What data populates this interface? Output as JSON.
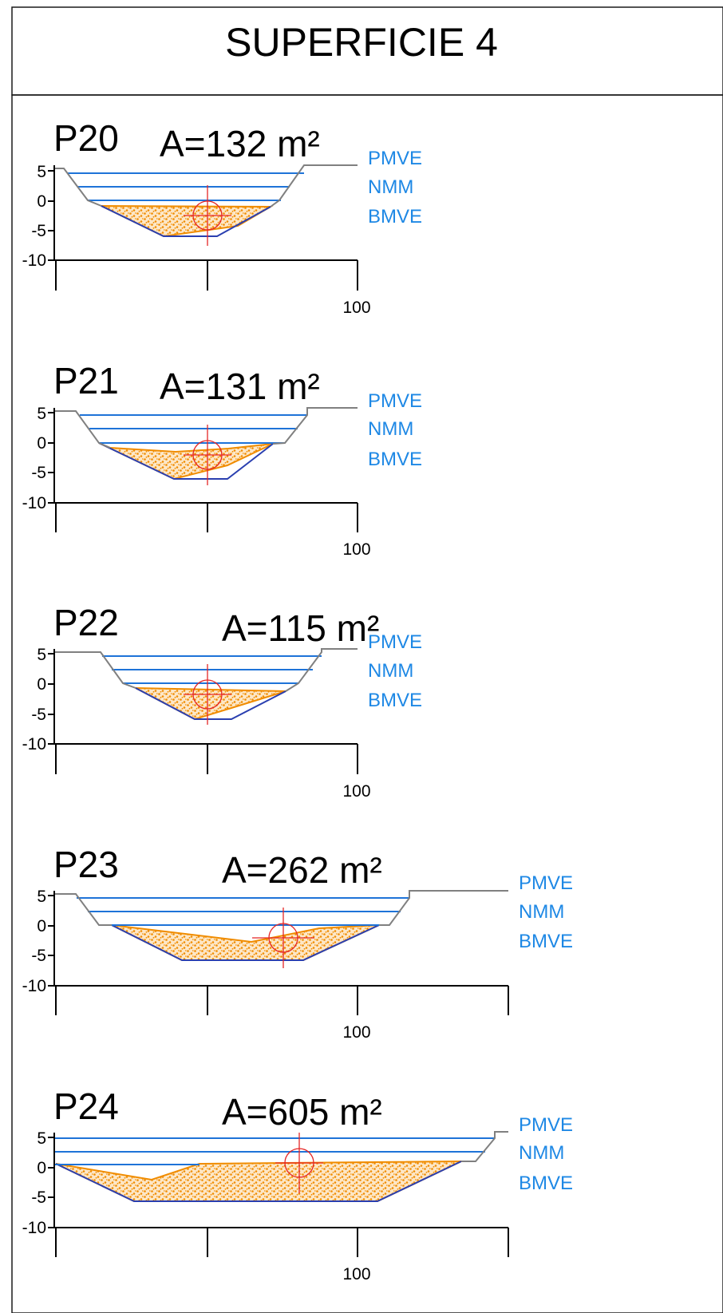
{
  "title": "SUPERFICIE 4",
  "levels": [
    "PMVE",
    "NMM",
    "BMVE"
  ],
  "y_ticks": [
    "5",
    "0",
    "-5",
    "-10"
  ],
  "x_tick_label": "100",
  "colors": {
    "water": "#1e73d8",
    "bed": "#2a3fb0",
    "sediment": "#f08c00",
    "ground": "#808080",
    "target": "#e52525",
    "level_text": "#1e88e5"
  },
  "profiles": [
    {
      "name": "P20",
      "area_label": "A=132 m²"
    },
    {
      "name": "P21",
      "area_label": "A=131 m²"
    },
    {
      "name": "P22",
      "area_label": "A=115 m²"
    },
    {
      "name": "P23",
      "area_label": "A=262 m²"
    },
    {
      "name": "P24",
      "area_label": "A=605 m²"
    }
  ]
}
